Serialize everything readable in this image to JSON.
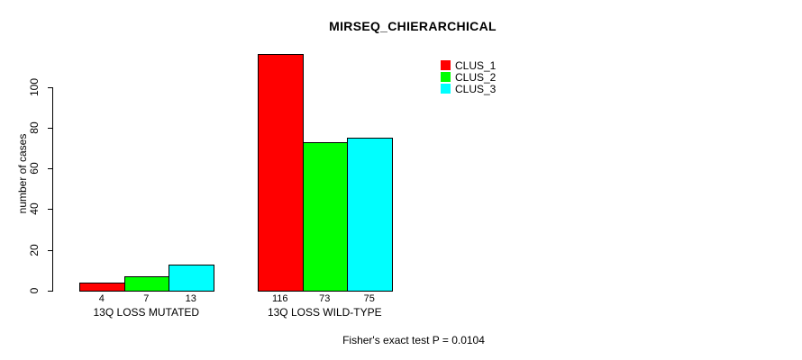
{
  "title": "MIRSEQ_CHIERARCHICAL",
  "footer": "Fisher's exact test P = 0.0104",
  "chart_data": {
    "type": "bar",
    "title": "MIRSEQ_CHIERARCHICAL",
    "xlabel": "",
    "ylabel": "number of cases",
    "categories": [
      "13Q LOSS MUTATED",
      "13Q LOSS WILD-TYPE"
    ],
    "series": [
      {
        "name": "CLUS_1",
        "color": "#ff0000",
        "values": [
          4,
          116
        ]
      },
      {
        "name": "CLUS_2",
        "color": "#00ff00",
        "values": [
          7,
          73
        ]
      },
      {
        "name": "CLUS_3",
        "color": "#00ffff",
        "values": [
          13,
          75
        ]
      }
    ],
    "bar_value_labels": [
      [
        "4",
        "7",
        "13"
      ],
      [
        "116",
        "73",
        "75"
      ]
    ],
    "y_ticks": [
      0,
      20,
      40,
      60,
      80,
      100
    ],
    "ylim": [
      0,
      116
    ],
    "axis_range_shown": [
      0,
      100
    ],
    "grid": false,
    "legend_position": "top-right",
    "legend_entries": [
      "CLUS_1",
      "CLUS_2",
      "CLUS_3"
    ],
    "annotation": "Fisher's exact test P = 0.0104",
    "bar_border_color": "#000000",
    "background_color": "#ffffff"
  }
}
